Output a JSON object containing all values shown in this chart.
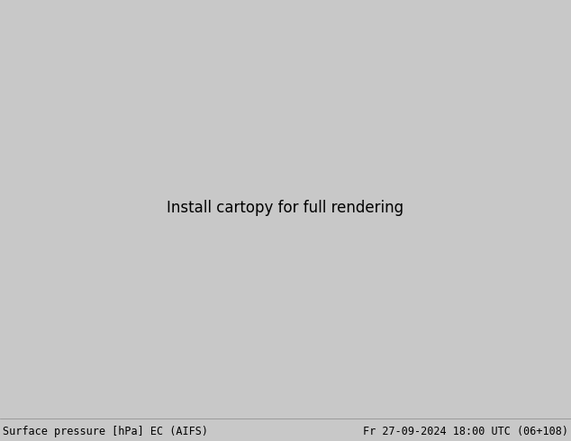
{
  "title_left": "Surface pressure [hPa] EC (AIFS)",
  "title_right": "Fr 27-09-2024 18:00 UTC (06+108)",
  "bg_ocean": "#c8c8c8",
  "land_green": "#a8d870",
  "contour_blue": "#0000cc",
  "contour_black": "#000000",
  "contour_red": "#cc0000",
  "footer_bg": "#c8c8c8",
  "footer_text": "#000000",
  "footer_fontsize": 8.5,
  "lw_blue": 0.65,
  "lw_black": 1.4,
  "lw_red": 0.65,
  "label_fs_blue": 5.0,
  "label_fs_black": 6.0,
  "label_fs_red": 5.0
}
